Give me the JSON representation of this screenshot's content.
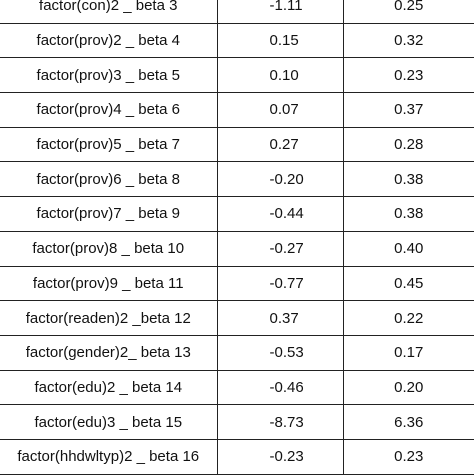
{
  "table": {
    "rows": [
      {
        "term": "factor(con)2 _ beta 3",
        "estimate": "-1.11",
        "se": "0.25"
      },
      {
        "term": "factor(prov)2 _ beta 4",
        "estimate": "0.15",
        "se": "0.32"
      },
      {
        "term": "factor(prov)3 _ beta 5",
        "estimate": "0.10",
        "se": "0.23"
      },
      {
        "term": "factor(prov)4 _ beta 6",
        "estimate": "0.07",
        "se": "0.37"
      },
      {
        "term": "factor(prov)5 _ beta 7",
        "estimate": "0.27",
        "se": "0.28"
      },
      {
        "term": "factor(prov)6 _ beta 8",
        "estimate": "-0.20",
        "se": "0.38"
      },
      {
        "term": "factor(prov)7 _ beta 9",
        "estimate": "-0.44",
        "se": "0.38"
      },
      {
        "term": "factor(prov)8 _ beta 10",
        "estimate": "-0.27",
        "se": "0.40"
      },
      {
        "term": "factor(prov)9 _ beta 11",
        "estimate": "-0.77",
        "se": "0.45"
      },
      {
        "term": "factor(readen)2 _beta 12",
        "estimate": "0.37",
        "se": "0.22"
      },
      {
        "term": "factor(gender)2_ beta 13",
        "estimate": "-0.53",
        "se": "0.17"
      },
      {
        "term": "factor(edu)2 _ beta 14",
        "estimate": "-0.46",
        "se": "0.20"
      },
      {
        "term": "factor(edu)3 _ beta 15",
        "estimate": "-8.73",
        "se": "6.36"
      },
      {
        "term": "factor(hhdwltyp)2 _ beta 16",
        "estimate": "-0.23",
        "se": "0.23"
      }
    ]
  }
}
